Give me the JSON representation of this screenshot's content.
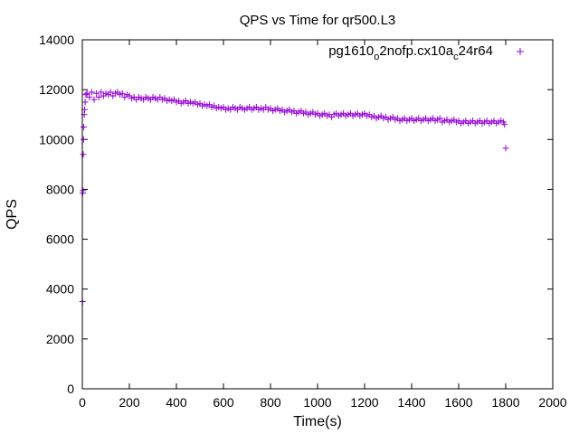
{
  "chart_data": {
    "type": "scatter",
    "title": "QPS vs Time for qr500.L3",
    "xlabel": "Time(s)",
    "ylabel": "QPS",
    "xlim": [
      0,
      2000
    ],
    "ylim": [
      0,
      14000
    ],
    "x_ticks": [
      "0",
      "200",
      "400",
      "600",
      "800",
      "1000",
      "1200",
      "1400",
      "1600",
      "1800",
      "2000"
    ],
    "y_ticks": [
      "0",
      "2000",
      "4000",
      "6000",
      "8000",
      "10000",
      "12000",
      "14000"
    ],
    "grid": false,
    "legend_position": "top-right",
    "marker": "+",
    "series": [
      {
        "name": "pg1610_o2nofp.cx10a_c24r64",
        "legend_parts": [
          "pg1610",
          "o",
          "2nofp.cx10a",
          "c",
          "24r64"
        ],
        "color": "#9400d3",
        "points": [
          [
            1,
            3500
          ],
          [
            2,
            7850
          ],
          [
            3,
            7950
          ],
          [
            4,
            9400
          ],
          [
            5,
            10000
          ],
          [
            6,
            10500
          ],
          [
            8,
            11000
          ],
          [
            10,
            11200
          ],
          [
            12,
            11500
          ],
          [
            15,
            11800
          ],
          [
            20,
            11850
          ],
          [
            30,
            11700
          ],
          [
            40,
            11900
          ],
          [
            50,
            11600
          ],
          [
            60,
            11850
          ],
          [
            70,
            11700
          ],
          [
            80,
            11900
          ],
          [
            90,
            11750
          ],
          [
            100,
            11850
          ],
          [
            110,
            11800
          ],
          [
            120,
            11900
          ],
          [
            130,
            11750
          ],
          [
            140,
            11850
          ],
          [
            150,
            11900
          ],
          [
            160,
            11800
          ],
          [
            170,
            11850
          ],
          [
            180,
            11700
          ],
          [
            190,
            11800
          ],
          [
            200,
            11750
          ],
          [
            210,
            11650
          ],
          [
            220,
            11700
          ],
          [
            230,
            11600
          ],
          [
            240,
            11700
          ],
          [
            250,
            11650
          ],
          [
            260,
            11600
          ],
          [
            270,
            11700
          ],
          [
            280,
            11650
          ],
          [
            290,
            11600
          ],
          [
            300,
            11700
          ],
          [
            310,
            11650
          ],
          [
            320,
            11600
          ],
          [
            330,
            11700
          ],
          [
            340,
            11600
          ],
          [
            350,
            11650
          ],
          [
            360,
            11550
          ],
          [
            370,
            11600
          ],
          [
            380,
            11550
          ],
          [
            390,
            11600
          ],
          [
            400,
            11500
          ],
          [
            410,
            11550
          ],
          [
            420,
            11450
          ],
          [
            430,
            11500
          ],
          [
            440,
            11550
          ],
          [
            450,
            11450
          ],
          [
            460,
            11500
          ],
          [
            470,
            11450
          ],
          [
            480,
            11500
          ],
          [
            490,
            11400
          ],
          [
            500,
            11450
          ],
          [
            510,
            11350
          ],
          [
            520,
            11400
          ],
          [
            530,
            11350
          ],
          [
            540,
            11400
          ],
          [
            550,
            11300
          ],
          [
            560,
            11350
          ],
          [
            570,
            11250
          ],
          [
            580,
            11300
          ],
          [
            590,
            11250
          ],
          [
            600,
            11300
          ],
          [
            610,
            11200
          ],
          [
            620,
            11250
          ],
          [
            630,
            11200
          ],
          [
            640,
            11300
          ],
          [
            650,
            11250
          ],
          [
            660,
            11200
          ],
          [
            670,
            11300
          ],
          [
            680,
            11250
          ],
          [
            690,
            11200
          ],
          [
            700,
            11250
          ],
          [
            710,
            11300
          ],
          [
            720,
            11200
          ],
          [
            730,
            11250
          ],
          [
            740,
            11300
          ],
          [
            750,
            11200
          ],
          [
            760,
            11250
          ],
          [
            770,
            11200
          ],
          [
            780,
            11300
          ],
          [
            790,
            11200
          ],
          [
            800,
            11250
          ],
          [
            810,
            11150
          ],
          [
            820,
            11200
          ],
          [
            830,
            11250
          ],
          [
            840,
            11150
          ],
          [
            850,
            11200
          ],
          [
            860,
            11100
          ],
          [
            870,
            11150
          ],
          [
            880,
            11200
          ],
          [
            890,
            11100
          ],
          [
            900,
            11150
          ],
          [
            910,
            11050
          ],
          [
            920,
            11100
          ],
          [
            930,
            11150
          ],
          [
            940,
            11050
          ],
          [
            950,
            11100
          ],
          [
            960,
            11000
          ],
          [
            970,
            11050
          ],
          [
            980,
            11100
          ],
          [
            990,
            11000
          ],
          [
            1000,
            11050
          ],
          [
            1010,
            10950
          ],
          [
            1020,
            11000
          ],
          [
            1030,
            11050
          ],
          [
            1040,
            10950
          ],
          [
            1050,
            11000
          ],
          [
            1060,
            10900
          ],
          [
            1070,
            11000
          ],
          [
            1080,
            11050
          ],
          [
            1090,
            10950
          ],
          [
            1100,
            11000
          ],
          [
            1110,
            11050
          ],
          [
            1120,
            10950
          ],
          [
            1130,
            11000
          ],
          [
            1140,
            11050
          ],
          [
            1150,
            10950
          ],
          [
            1160,
            11000
          ],
          [
            1170,
            11050
          ],
          [
            1180,
            10950
          ],
          [
            1190,
            11000
          ],
          [
            1200,
            11050
          ],
          [
            1210,
            10950
          ],
          [
            1220,
            11000
          ],
          [
            1230,
            10900
          ],
          [
            1240,
            10950
          ],
          [
            1250,
            10850
          ],
          [
            1260,
            10900
          ],
          [
            1270,
            10950
          ],
          [
            1280,
            10850
          ],
          [
            1290,
            10900
          ],
          [
            1300,
            10800
          ],
          [
            1310,
            10850
          ],
          [
            1320,
            10900
          ],
          [
            1330,
            10800
          ],
          [
            1340,
            10850
          ],
          [
            1350,
            10750
          ],
          [
            1360,
            10800
          ],
          [
            1370,
            10850
          ],
          [
            1380,
            10750
          ],
          [
            1390,
            10800
          ],
          [
            1400,
            10850
          ],
          [
            1410,
            10750
          ],
          [
            1420,
            10800
          ],
          [
            1430,
            10850
          ],
          [
            1440,
            10750
          ],
          [
            1450,
            10800
          ],
          [
            1460,
            10850
          ],
          [
            1470,
            10750
          ],
          [
            1480,
            10800
          ],
          [
            1490,
            10850
          ],
          [
            1500,
            10750
          ],
          [
            1510,
            10800
          ],
          [
            1520,
            10850
          ],
          [
            1530,
            10700
          ],
          [
            1540,
            10750
          ],
          [
            1550,
            10800
          ],
          [
            1560,
            10700
          ],
          [
            1570,
            10750
          ],
          [
            1580,
            10800
          ],
          [
            1590,
            10700
          ],
          [
            1600,
            10750
          ],
          [
            1610,
            10650
          ],
          [
            1620,
            10700
          ],
          [
            1630,
            10750
          ],
          [
            1640,
            10650
          ],
          [
            1650,
            10700
          ],
          [
            1660,
            10750
          ],
          [
            1670,
            10650
          ],
          [
            1680,
            10700
          ],
          [
            1690,
            10750
          ],
          [
            1700,
            10650
          ],
          [
            1710,
            10700
          ],
          [
            1720,
            10750
          ],
          [
            1730,
            10650
          ],
          [
            1740,
            10700
          ],
          [
            1750,
            10750
          ],
          [
            1760,
            10650
          ],
          [
            1770,
            10700
          ],
          [
            1780,
            10750
          ],
          [
            1790,
            10700
          ],
          [
            1795,
            10600
          ],
          [
            1800,
            9650
          ]
        ]
      }
    ]
  }
}
